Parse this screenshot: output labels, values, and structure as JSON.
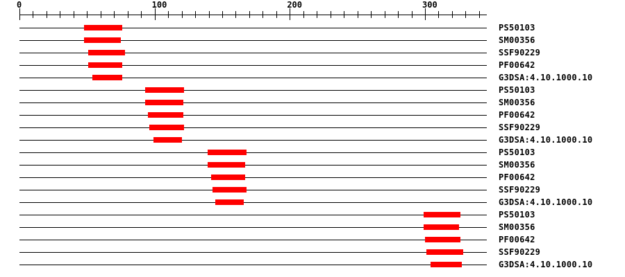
{
  "chart_data": {
    "type": "bar",
    "title": "",
    "description": "Protein sequence signature-match plot: horizontal ruler with red range bars per signature row",
    "xlabel": "",
    "ylabel": "",
    "xlim": [
      0,
      346
    ],
    "x_major_ticks": [
      0,
      100,
      200,
      300
    ],
    "x_minor_tick_step": 10,
    "x_minor_tick_max": 340,
    "grid": false,
    "legend": "none",
    "colors": {
      "bar": "#ff0000",
      "axis": "#000000",
      "text": "#000000",
      "background": "#ffffff"
    },
    "rows": [
      {
        "label": "PS50103",
        "start": 48,
        "end": 76
      },
      {
        "label": "SM00356",
        "start": 48,
        "end": 75
      },
      {
        "label": "SSF90229",
        "start": 51,
        "end": 78
      },
      {
        "label": "PF00642",
        "start": 51,
        "end": 76
      },
      {
        "label": "G3DSA:4.10.1000.10",
        "start": 54,
        "end": 76
      },
      {
        "label": "PS50103",
        "start": 93,
        "end": 122
      },
      {
        "label": "SM00356",
        "start": 93,
        "end": 121
      },
      {
        "label": "PF00642",
        "start": 95,
        "end": 121
      },
      {
        "label": "SSF90229",
        "start": 96,
        "end": 122
      },
      {
        "label": "G3DSA:4.10.1000.10",
        "start": 99,
        "end": 120
      },
      {
        "label": "PS50103",
        "start": 139,
        "end": 168
      },
      {
        "label": "SM00356",
        "start": 139,
        "end": 167
      },
      {
        "label": "PF00642",
        "start": 142,
        "end": 167
      },
      {
        "label": "SSF90229",
        "start": 143,
        "end": 168
      },
      {
        "label": "G3DSA:4.10.1000.10",
        "start": 145,
        "end": 166
      },
      {
        "label": "PS50103",
        "start": 299,
        "end": 326
      },
      {
        "label": "SM00356",
        "start": 299,
        "end": 325
      },
      {
        "label": "PF00642",
        "start": 300,
        "end": 326
      },
      {
        "label": "SSF90229",
        "start": 301,
        "end": 328
      },
      {
        "label": "G3DSA:4.10.1000.10",
        "start": 304,
        "end": 327
      }
    ]
  }
}
